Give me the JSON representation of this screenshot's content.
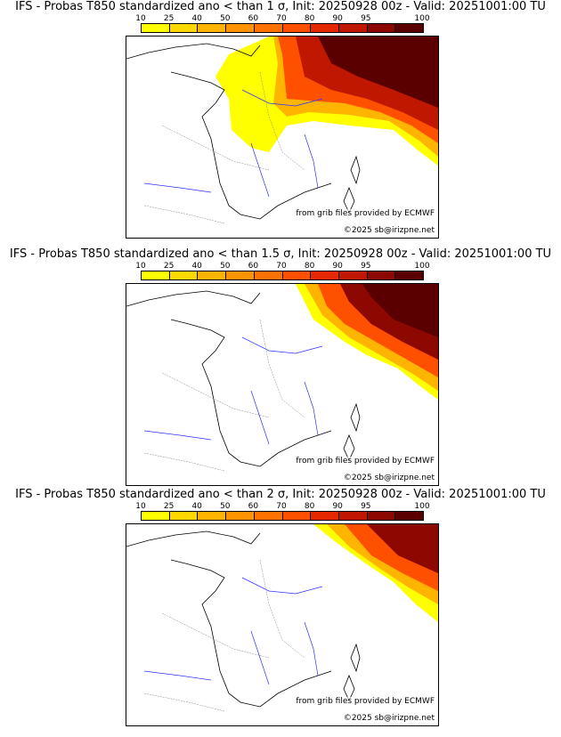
{
  "scale": {
    "labels": [
      "10",
      "25",
      "40",
      "50",
      "60",
      "70",
      "80",
      "90",
      "95",
      "100"
    ],
    "colors": [
      "#ffff00",
      "#ffd800",
      "#ffb400",
      "#ff9400",
      "#ff7200",
      "#ff5000",
      "#e62800",
      "#c01800",
      "#8c0800",
      "#5a0000"
    ]
  },
  "footer": {
    "source": "from grib files provided by ECMWF",
    "copyright": "©2025 sb@irizpne.net"
  },
  "panels": [
    {
      "title": "IFS - Probas T850  standardized ano < than 1 σ, Init: 20250928 00z - Valid: 20251001:00 TU",
      "threshold": "1 σ"
    },
    {
      "title": "IFS - Probas T850  standardized ano < than 1.5 σ, Init: 20250928 00z - Valid: 20251001:00 TU",
      "threshold": "1.5 σ"
    },
    {
      "title": "IFS - Probas T850  standardized ano < than 2 σ, Init: 20250928 00z - Valid: 20251001:00 TU",
      "threshold": "2 σ"
    }
  ]
}
